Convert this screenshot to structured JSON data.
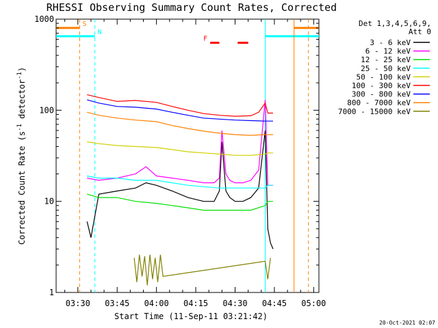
{
  "chart_data": {
    "type": "line",
    "title": "RHESSI Observing Summary Count Rates, Corrected",
    "xlabel": "Start Time (11-Sep-11 03:21:42)",
    "ylabel": "Corrected Count Rate (s",
    "ylabel_sup1": "-1",
    "ylabel_mid": " detector",
    "ylabel_sup2": "-1",
    "ylabel_end": ")",
    "y_scale": "log",
    "ylim": [
      1,
      1000
    ],
    "y_ticks": [
      {
        "value": 1,
        "label": "1"
      },
      {
        "value": 10,
        "label": "10"
      },
      {
        "value": 100,
        "label": "100"
      },
      {
        "value": 1000,
        "label": "1000"
      }
    ],
    "xlim": [
      "03:21:42",
      "05:02:00"
    ],
    "x_ticks": [
      "03:30",
      "03:45",
      "04:00",
      "04:15",
      "04:30",
      "04:45",
      "05:00"
    ],
    "legend_header": [
      "Det 1,3,4,5,6,9,",
      "Att 0"
    ],
    "legend_position": "right",
    "series": [
      {
        "name": "3 - 6 keV",
        "color": "#000000",
        "t": [
          "03:33:30",
          "03:35:00",
          "03:38:00",
          "03:45:00",
          "03:52:00",
          "03:56:00",
          "04:00:00",
          "04:06:00",
          "04:12:00",
          "04:18:00",
          "04:22:00",
          "04:24:00",
          "04:25:00",
          "04:26:30",
          "04:28:00",
          "04:30:00",
          "04:33:00",
          "04:36:00",
          "04:39:00",
          "04:41:30",
          "04:42:30",
          "04:43:30",
          "04:44:30"
        ],
        "values": [
          6,
          4,
          12,
          13,
          14,
          16,
          15,
          13,
          11,
          10,
          10,
          13,
          45,
          13,
          11,
          10,
          10,
          11,
          14,
          60,
          5,
          3.5,
          3
        ]
      },
      {
        "name": "6 - 12 keV",
        "color": "#ff00ff",
        "t": [
          "03:33:30",
          "03:38:00",
          "03:45:00",
          "03:52:00",
          "03:56:00",
          "04:00:00",
          "04:06:00",
          "04:12:00",
          "04:18:00",
          "04:22:00",
          "04:24:00",
          "04:25:00",
          "04:26:30",
          "04:28:00",
          "04:30:00",
          "04:33:00",
          "04:36:00",
          "04:39:00",
          "04:41:30",
          "04:42:30",
          "04:44:30"
        ],
        "values": [
          18,
          17,
          18,
          20,
          24,
          19,
          18,
          17,
          16,
          16,
          18,
          60,
          20,
          17,
          16,
          16,
          17,
          22,
          130,
          15,
          15
        ]
      },
      {
        "name": "12 - 25 keV",
        "color": "#00e000",
        "t": [
          "03:33:30",
          "03:38:00",
          "03:45:00",
          "03:52:00",
          "04:00:00",
          "04:06:00",
          "04:12:00",
          "04:18:00",
          "04:24:00",
          "04:30:00",
          "04:36:00",
          "04:41:30",
          "04:42:30",
          "04:44:30"
        ],
        "values": [
          12,
          11,
          11,
          10,
          9.5,
          9,
          8.5,
          8,
          8,
          8,
          8,
          9,
          10,
          10
        ]
      },
      {
        "name": "25 - 50 keV",
        "color": "#00ffff",
        "t": [
          "03:33:30",
          "03:38:00",
          "03:45:00",
          "03:52:00",
          "04:00:00",
          "04:06:00",
          "04:12:00",
          "04:18:00",
          "04:24:00",
          "04:30:00",
          "04:36:00",
          "04:41:30",
          "04:42:30",
          "04:44:30"
        ],
        "values": [
          19,
          18,
          18,
          17,
          17,
          16,
          15,
          14.5,
          14,
          14,
          14,
          14,
          15,
          15
        ]
      },
      {
        "name": "50 - 100 keV",
        "color": "#d0d000",
        "t": [
          "03:33:30",
          "03:38:00",
          "03:45:00",
          "03:52:00",
          "04:00:00",
          "04:06:00",
          "04:12:00",
          "04:18:00",
          "04:24:00",
          "04:30:00",
          "04:36:00",
          "04:41:30",
          "04:42:30",
          "04:44:30"
        ],
        "values": [
          45,
          43,
          41,
          40,
          39,
          37,
          35,
          34,
          33,
          32,
          32,
          33,
          34,
          34
        ]
      },
      {
        "name": "100 - 300 keV",
        "color": "#ff0000",
        "t": [
          "03:33:30",
          "03:38:00",
          "03:45:00",
          "03:52:00",
          "04:00:00",
          "04:06:00",
          "04:12:00",
          "04:18:00",
          "04:24:00",
          "04:30:00",
          "04:36:00",
          "04:39:00",
          "04:41:30",
          "04:42:30",
          "04:44:30"
        ],
        "values": [
          148,
          138,
          125,
          128,
          122,
          110,
          100,
          92,
          88,
          86,
          87,
          95,
          120,
          93,
          93
        ]
      },
      {
        "name": "300 - 800 keV",
        "color": "#0000ff",
        "t": [
          "03:33:30",
          "03:38:00",
          "03:45:00",
          "03:52:00",
          "04:00:00",
          "04:06:00",
          "04:12:00",
          "04:18:00",
          "04:24:00",
          "04:30:00",
          "04:36:00",
          "04:41:30",
          "04:42:30",
          "04:44:30"
        ],
        "values": [
          130,
          120,
          110,
          108,
          103,
          95,
          88,
          82,
          80,
          78,
          77,
          76,
          76,
          76
        ]
      },
      {
        "name": "800 - 7000 keV",
        "color": "#ff8000",
        "t": [
          "03:33:30",
          "03:38:00",
          "03:45:00",
          "03:52:00",
          "04:00:00",
          "04:06:00",
          "04:12:00",
          "04:18:00",
          "04:24:00",
          "04:30:00",
          "04:36:00",
          "04:41:30",
          "04:42:30",
          "04:44:30"
        ],
        "values": [
          95,
          88,
          82,
          78,
          75,
          68,
          63,
          59,
          56,
          54,
          53,
          54,
          54,
          54
        ]
      },
      {
        "name": "7000 - 15000 keV",
        "color": "#808000",
        "t": [
          "03:51:30",
          "03:52:30",
          "03:53:30",
          "03:54:30",
          "03:55:30",
          "03:56:30",
          "03:57:30",
          "03:58:30",
          "03:59:30",
          "04:00:30",
          "04:01:30",
          "04:02:30",
          "04:41:30",
          "04:42:30",
          "04:43:30"
        ],
        "values": [
          2.4,
          1.3,
          2.6,
          1.5,
          2.5,
          1.2,
          2.6,
          1.4,
          2.4,
          1.3,
          2.6,
          1.5,
          2.2,
          1.4,
          2.4
        ]
      }
    ],
    "flags": [
      {
        "label": "S",
        "color": "#ff8000",
        "t": [
          "03:21:42",
          "03:30:40"
        ],
        "value": 800
      },
      {
        "label": "N",
        "color": "#00ffff",
        "t": [
          "03:21:42",
          "03:36:30"
        ],
        "value": 650
      },
      {
        "label": "F",
        "color": "#ff0000",
        "segments": [
          [
            "04:20:30",
            "04:24:00"
          ],
          [
            "04:31:00",
            "04:35:00"
          ]
        ],
        "value": 550
      }
    ],
    "vlines": [
      {
        "t": "03:30:40",
        "color": "#ff8000",
        "dashed": true
      },
      {
        "t": "03:36:30",
        "color": "#00ffff",
        "dashed": true
      },
      {
        "t": "04:41:30",
        "color": "#00ffff",
        "dashed": false
      },
      {
        "t": "04:52:30",
        "color": "#ff8000",
        "dashed": false
      },
      {
        "t": "04:58:00",
        "color": "#ff8000",
        "dashed": true
      }
    ],
    "timestamp": "20-Oct-2021 02:07"
  }
}
